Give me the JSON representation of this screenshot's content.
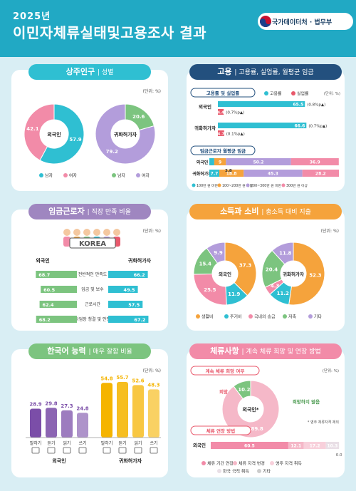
{
  "header": {
    "year": "2025년",
    "title": "이민자체류실태및고용조사 결과",
    "logo": "국가데이터처 · 법무부"
  },
  "colors": {
    "teal": "#2fbfd2",
    "pink": "#f28ba8",
    "green": "#7cc47f",
    "purple": "#b39ddb",
    "orange": "#f5a33c",
    "red": "#e8586b",
    "navy": "#23507e",
    "lavender": "#9f86c0"
  },
  "sections": {
    "residents": {
      "title": "상주인구",
      "subtitle": "| 성별",
      "unit": "(단위: %)"
    },
    "employment": {
      "title": "고용",
      "subtitle": "| 고용률, 실업률, 월평균 임금"
    },
    "wage": {
      "title": "임금근로자",
      "subtitle": "| 직장 만족 비율"
    },
    "income": {
      "title": "소득과 소비",
      "subtitle": "| 총소득 대비 지출"
    },
    "korean": {
      "title": "한국어 능력",
      "subtitle": "| 매우 잘함 비율"
    },
    "stay": {
      "title": "체류사항",
      "subtitle": "| 계속 체류 희망 및 연장 방법"
    }
  },
  "chart_data": [
    {
      "type": "pie",
      "id": "gender",
      "units": "%",
      "groups": [
        {
          "label": "외국인",
          "values": [
            57.9,
            42.1
          ],
          "categories": [
            "남자",
            "여자"
          ]
        },
        {
          "label": "귀화허가자",
          "values": [
            20.6,
            79.2
          ],
          "categories": [
            "남자",
            "여자"
          ]
        }
      ]
    },
    {
      "type": "bar",
      "id": "employment_rates",
      "title": "고용률 및 실업률",
      "units": "(단위: %)",
      "legend": [
        "고용률",
        "실업률"
      ],
      "rows": [
        {
          "label": "외국인",
          "employment": 65.5,
          "unemployment": 4.4,
          "employment_change": "0.8%p",
          "unemployment_change": "0.7%p"
        },
        {
          "label": "귀화허가자",
          "employment": 66.6,
          "unemployment": 4.7,
          "employment_change": "0.7%p",
          "unemployment_change": "0.1%p"
        }
      ]
    },
    {
      "type": "bar",
      "id": "wage_distribution",
      "title": "임금근로자 월평균 임금",
      "categories": [
        "100만 원 미만",
        "100~200만 원 미만",
        "200~300만 원 미만",
        "300만 원 이상"
      ],
      "rows": [
        {
          "label": "외국인",
          "values": [
            3.8,
            9.0,
            50.2,
            36.9
          ]
        },
        {
          "label": "귀화허가자",
          "values": [
            7.7,
            18.8,
            45.3,
            28.2
          ]
        }
      ]
    },
    {
      "type": "bar",
      "id": "job_satisfaction",
      "units": "(단위: %)",
      "group_labels": [
        "외국인",
        "귀화허가자"
      ],
      "categories": [
        "전반적인 만족도",
        "임금 및 보수",
        "근로시간",
        "작업장 청결 및 안전"
      ],
      "series": [
        {
          "name": "외국인",
          "values": [
            68.7,
            60.5,
            62.4,
            68.2
          ]
        },
        {
          "name": "귀화허가자",
          "values": [
            66.2,
            49.5,
            57.5,
            67.2
          ]
        }
      ],
      "center_label": "KOREA"
    },
    {
      "type": "pie",
      "id": "spending",
      "units": "(단위: %)",
      "categories": [
        "생활비",
        "주거비",
        "국내의 송금",
        "저축",
        "기타"
      ],
      "groups": [
        {
          "label": "외국인",
          "values": [
            37.3,
            11.9,
            25.5,
            15.4,
            9.9
          ]
        },
        {
          "label": "귀화허가자",
          "values": [
            52.3,
            11.2,
            4.3,
            20.4,
            11.8
          ]
        }
      ]
    },
    {
      "type": "bar",
      "id": "korean_ability",
      "units": "(단위: %)",
      "categories": [
        "말하기",
        "듣기",
        "읽기",
        "쓰기"
      ],
      "series": [
        {
          "name": "외국인",
          "values": [
            28.9,
            29.8,
            27.3,
            24.8
          ]
        },
        {
          "name": "귀화허가자",
          "values": [
            54.8,
            55.7,
            52.6,
            48.3
          ]
        }
      ]
    },
    {
      "type": "pie",
      "id": "stay_wish",
      "title": "계속 체류 희망 여부",
      "units": "(단위: %)",
      "center": "외국인*",
      "categories": [
        "희망",
        "희망하지 않음"
      ],
      "values": [
        89.8,
        10.2
      ],
      "note": "* 영주 체류자격 제외"
    },
    {
      "type": "bar",
      "id": "stay_method",
      "title": "체류 연장 방법",
      "row_label": "외국인",
      "categories": [
        "체류 기간 연장",
        "체류 자격 변경",
        "영주 자격 취득",
        "한국 국적 취득",
        "기타"
      ],
      "values": [
        60.5,
        12.1,
        17.2,
        10.3,
        0.0
      ]
    }
  ]
}
